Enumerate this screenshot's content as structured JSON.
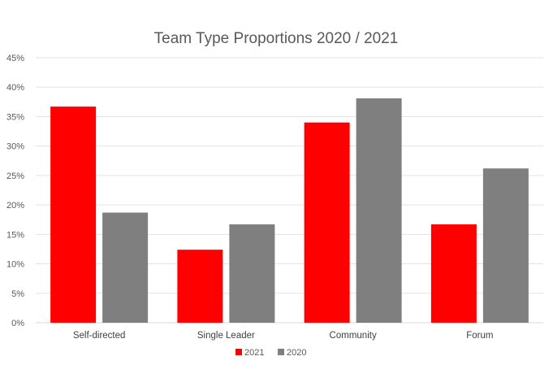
{
  "chart_data": {
    "type": "bar",
    "title": "Team Type Proportions 2020 / 2021",
    "xlabel": "",
    "ylabel": "",
    "categories": [
      "Self-directed",
      "Single Leader",
      "Community",
      "Forum"
    ],
    "series": [
      {
        "name": "2021",
        "color": "#ff0000",
        "values": [
          36.7,
          12.4,
          34.0,
          16.7
        ]
      },
      {
        "name": "2020",
        "color": "#7f7f7f",
        "values": [
          18.7,
          16.7,
          38.1,
          26.2
        ]
      }
    ],
    "ylim": [
      0,
      45
    ],
    "ytick_step": 5,
    "ytick_format": "percent",
    "grid": true,
    "legend_position": "bottom"
  }
}
